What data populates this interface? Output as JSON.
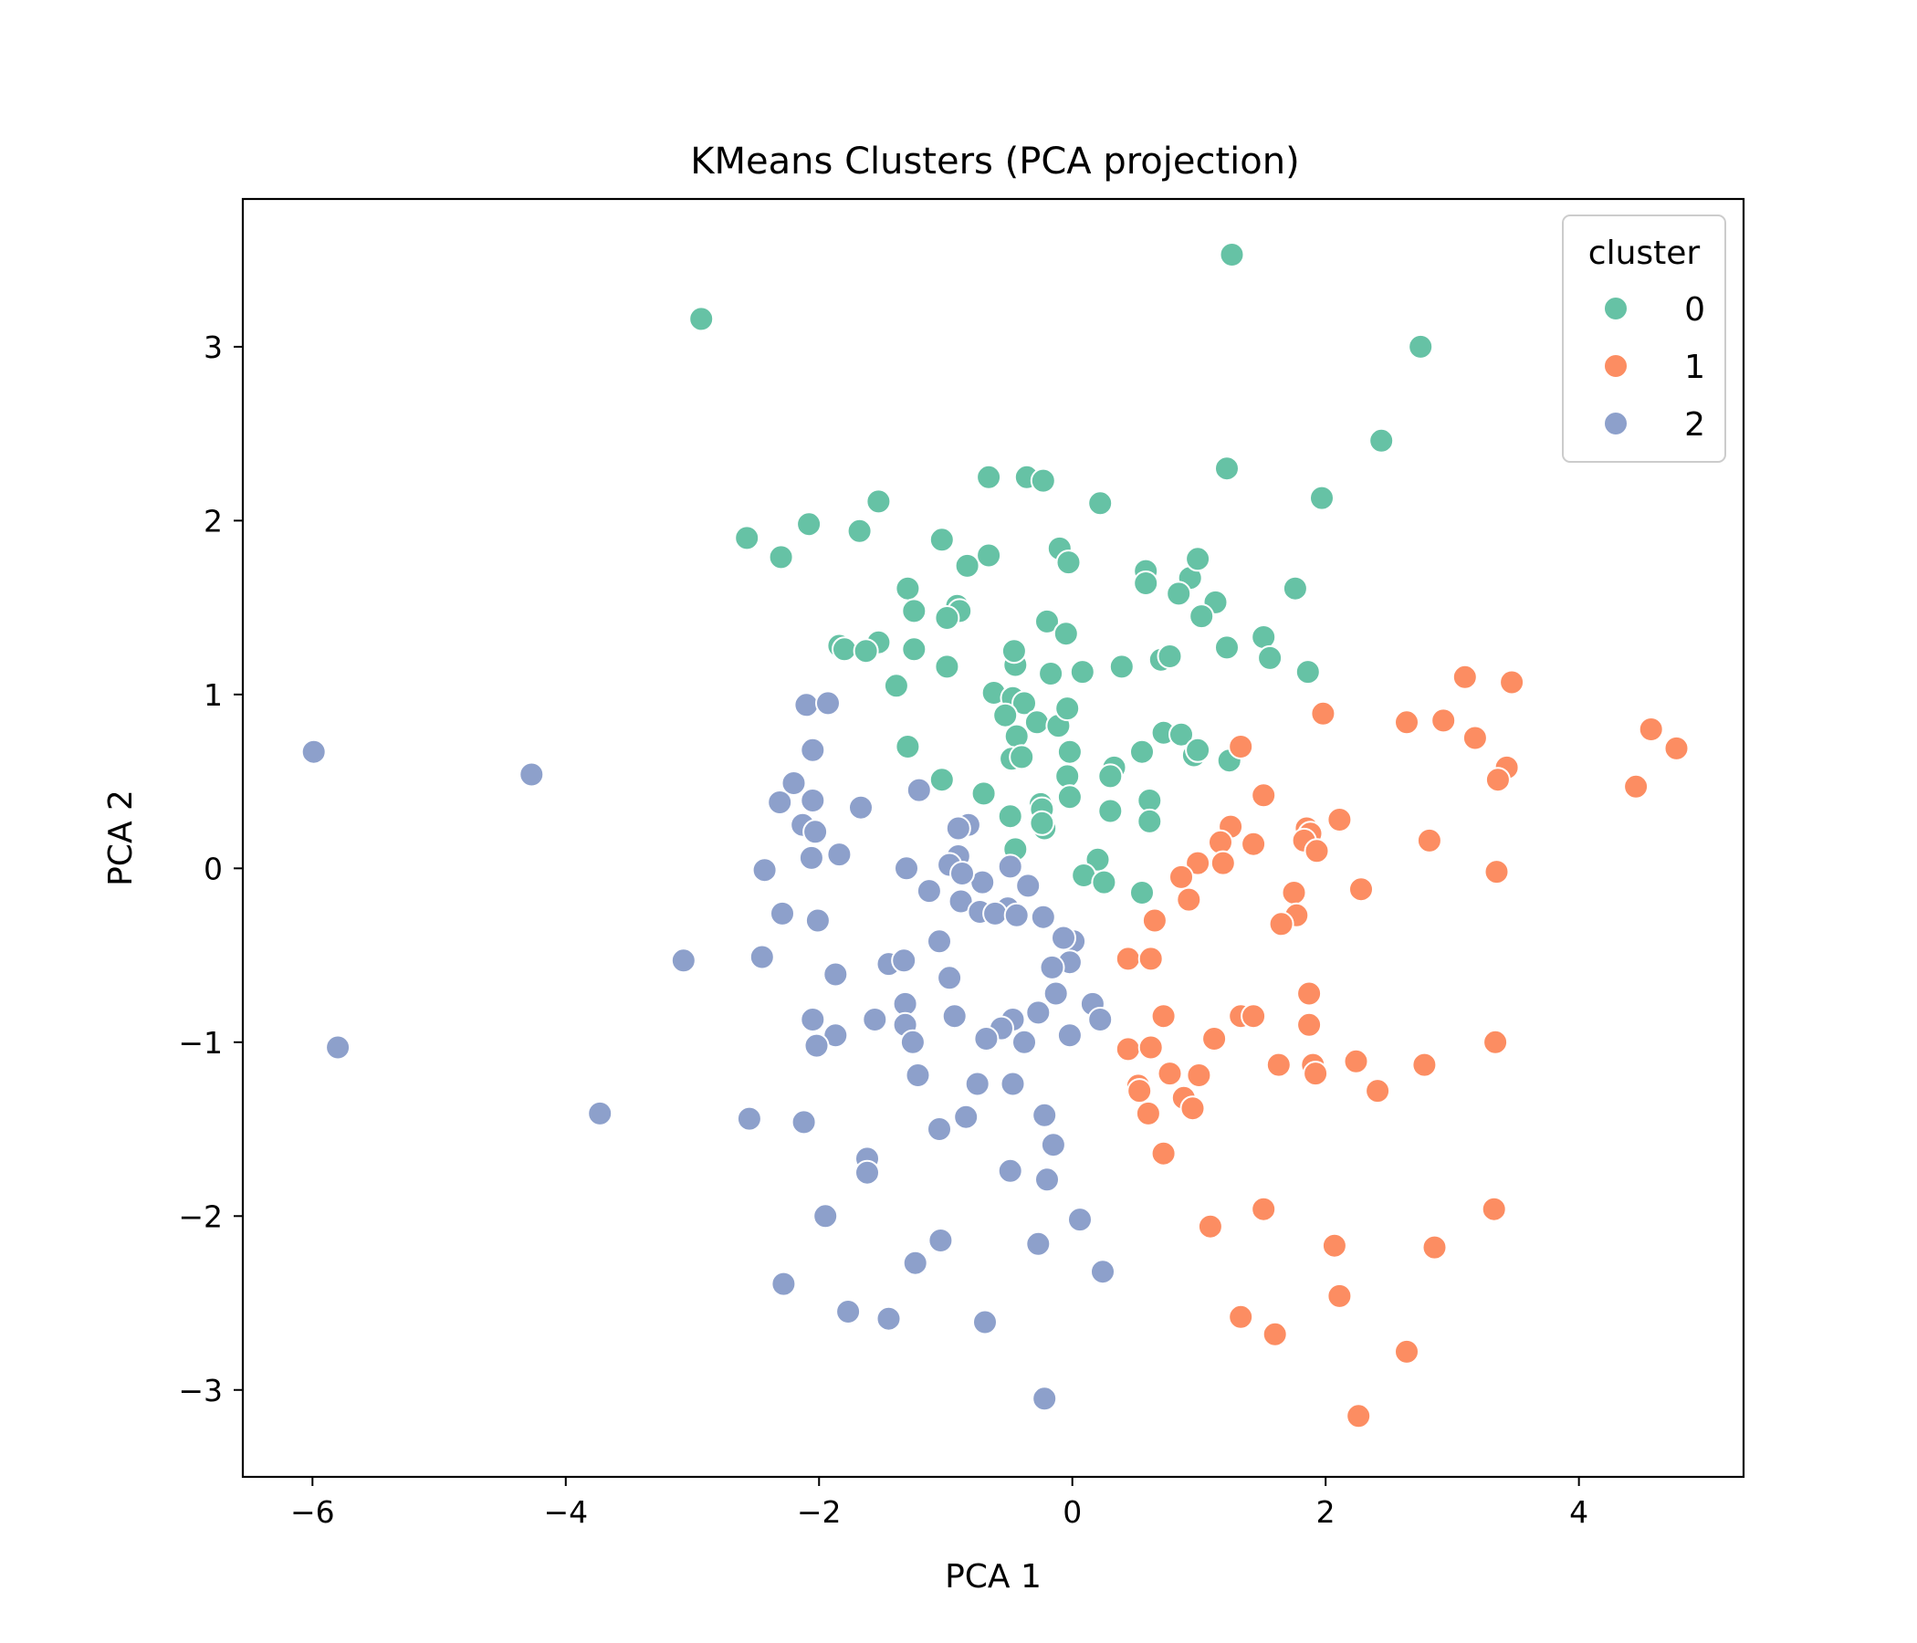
{
  "chart_data": {
    "type": "scatter",
    "title": "KMeans Clusters (PCA projection)",
    "xlabel": "PCA 1",
    "ylabel": "PCA 2",
    "xlim": [
      -6.55,
      5.3
    ],
    "ylim": [
      -3.5,
      3.85
    ],
    "xticks": [
      -6,
      -4,
      -2,
      0,
      2,
      4
    ],
    "yticks": [
      -3,
      -2,
      -1,
      0,
      1,
      2,
      3
    ],
    "xtick_labels": [
      "−6",
      "−4",
      "−2",
      "0",
      "2",
      "4"
    ],
    "ytick_labels": [
      "−3",
      "−2",
      "−1",
      "0",
      "1",
      "2",
      "3"
    ],
    "grid": false,
    "legend": {
      "title": "cluster",
      "position": "top-right"
    },
    "series": [
      {
        "name": "0",
        "color": "#66c2a5",
        "points": [
          [
            -2.93,
            3.16
          ],
          [
            1.26,
            3.53
          ],
          [
            2.75,
            3.0
          ],
          [
            2.44,
            2.46
          ],
          [
            1.22,
            2.3
          ],
          [
            1.97,
            2.13
          ],
          [
            -0.66,
            2.25
          ],
          [
            -0.36,
            2.25
          ],
          [
            -0.23,
            2.23
          ],
          [
            0.22,
            2.1
          ],
          [
            -1.53,
            2.11
          ],
          [
            -2.08,
            1.98
          ],
          [
            -2.57,
            1.9
          ],
          [
            -2.3,
            1.79
          ],
          [
            -1.68,
            1.94
          ],
          [
            -1.03,
            1.89
          ],
          [
            -0.66,
            1.8
          ],
          [
            -0.83,
            1.74
          ],
          [
            -0.1,
            1.84
          ],
          [
            -0.03,
            1.76
          ],
          [
            0.58,
            1.71
          ],
          [
            0.58,
            1.64
          ],
          [
            0.93,
            1.67
          ],
          [
            0.99,
            1.78
          ],
          [
            1.76,
            1.61
          ],
          [
            -1.3,
            1.61
          ],
          [
            -1.25,
            1.48
          ],
          [
            -0.91,
            1.51
          ],
          [
            -0.89,
            1.48
          ],
          [
            -0.99,
            1.44
          ],
          [
            -0.2,
            1.42
          ],
          [
            -0.05,
            1.35
          ],
          [
            0.84,
            1.58
          ],
          [
            1.13,
            1.53
          ],
          [
            1.02,
            1.45
          ],
          [
            1.51,
            1.33
          ],
          [
            1.22,
            1.27
          ],
          [
            1.56,
            1.21
          ],
          [
            1.86,
            1.13
          ],
          [
            0.7,
            1.2
          ],
          [
            0.77,
            1.22
          ],
          [
            0.39,
            1.16
          ],
          [
            0.08,
            1.13
          ],
          [
            -0.17,
            1.12
          ],
          [
            -0.45,
            1.17
          ],
          [
            -0.46,
            1.25
          ],
          [
            -1.25,
            1.26
          ],
          [
            -1.53,
            1.3
          ],
          [
            -1.84,
            1.28
          ],
          [
            -1.8,
            1.26
          ],
          [
            -1.63,
            1.25
          ],
          [
            -0.99,
            1.16
          ],
          [
            -1.39,
            1.05
          ],
          [
            -0.62,
            1.01
          ],
          [
            -0.47,
            0.98
          ],
          [
            -0.38,
            0.95
          ],
          [
            -0.53,
            0.88
          ],
          [
            -0.28,
            0.84
          ],
          [
            -0.11,
            0.82
          ],
          [
            -0.04,
            0.92
          ],
          [
            -0.44,
            0.76
          ],
          [
            -0.48,
            0.63
          ],
          [
            -0.4,
            0.64
          ],
          [
            -0.02,
            0.67
          ],
          [
            -1.3,
            0.7
          ],
          [
            0.33,
            0.58
          ],
          [
            0.3,
            0.53
          ],
          [
            0.55,
            0.67
          ],
          [
            0.72,
            0.78
          ],
          [
            0.86,
            0.77
          ],
          [
            0.96,
            0.65
          ],
          [
            0.99,
            0.68
          ],
          [
            1.24,
            0.62
          ],
          [
            -1.03,
            0.51
          ],
          [
            -0.04,
            0.53
          ],
          [
            -0.7,
            0.43
          ],
          [
            0.61,
            0.39
          ],
          [
            -0.25,
            0.37
          ],
          [
            -0.24,
            0.34
          ],
          [
            -0.02,
            0.41
          ],
          [
            0.3,
            0.33
          ],
          [
            -0.49,
            0.3
          ],
          [
            -0.22,
            0.23
          ],
          [
            -0.24,
            0.26
          ],
          [
            0.61,
            0.27
          ],
          [
            -0.45,
            0.11
          ],
          [
            0.2,
            0.05
          ],
          [
            0.09,
            -0.04
          ],
          [
            0.25,
            -0.08
          ],
          [
            0.55,
            -0.14
          ]
        ]
      },
      {
        "name": "1",
        "color": "#fc8d62",
        "points": [
          [
            3.1,
            1.1
          ],
          [
            3.47,
            1.07
          ],
          [
            2.64,
            0.84
          ],
          [
            2.93,
            0.85
          ],
          [
            1.98,
            0.89
          ],
          [
            3.18,
            0.75
          ],
          [
            4.57,
            0.8
          ],
          [
            4.77,
            0.69
          ],
          [
            1.33,
            0.7
          ],
          [
            3.43,
            0.58
          ],
          [
            3.36,
            0.51
          ],
          [
            4.45,
            0.47
          ],
          [
            1.51,
            0.42
          ],
          [
            1.85,
            0.23
          ],
          [
            1.88,
            0.2
          ],
          [
            2.11,
            0.28
          ],
          [
            1.25,
            0.24
          ],
          [
            1.17,
            0.15
          ],
          [
            1.19,
            0.03
          ],
          [
            1.43,
            0.14
          ],
          [
            1.83,
            0.16
          ],
          [
            1.93,
            0.1
          ],
          [
            2.82,
            0.16
          ],
          [
            0.99,
            0.03
          ],
          [
            0.86,
            -0.05
          ],
          [
            3.35,
            -0.02
          ],
          [
            2.28,
            -0.12
          ],
          [
            1.75,
            -0.14
          ],
          [
            0.92,
            -0.18
          ],
          [
            1.77,
            -0.27
          ],
          [
            1.65,
            -0.32
          ],
          [
            0.65,
            -0.3
          ],
          [
            0.44,
            -0.52
          ],
          [
            0.62,
            -0.52
          ],
          [
            1.87,
            -0.72
          ],
          [
            0.72,
            -0.85
          ],
          [
            1.33,
            -0.85
          ],
          [
            1.43,
            -0.85
          ],
          [
            1.87,
            -0.9
          ],
          [
            1.12,
            -0.98
          ],
          [
            0.44,
            -1.04
          ],
          [
            0.62,
            -1.03
          ],
          [
            1.63,
            -1.13
          ],
          [
            1.9,
            -1.13
          ],
          [
            1.92,
            -1.18
          ],
          [
            2.24,
            -1.11
          ],
          [
            2.78,
            -1.13
          ],
          [
            3.34,
            -1.0
          ],
          [
            0.52,
            -1.25
          ],
          [
            0.53,
            -1.28
          ],
          [
            0.77,
            -1.18
          ],
          [
            1.0,
            -1.19
          ],
          [
            0.88,
            -1.32
          ],
          [
            0.95,
            -1.38
          ],
          [
            2.41,
            -1.28
          ],
          [
            0.6,
            -1.41
          ],
          [
            0.72,
            -1.64
          ],
          [
            1.09,
            -2.06
          ],
          [
            1.51,
            -1.96
          ],
          [
            3.33,
            -1.96
          ],
          [
            2.07,
            -2.17
          ],
          [
            2.86,
            -2.18
          ],
          [
            2.11,
            -2.46
          ],
          [
            1.33,
            -2.58
          ],
          [
            1.6,
            -2.68
          ],
          [
            2.64,
            -2.78
          ],
          [
            2.26,
            -3.15
          ]
        ]
      },
      {
        "name": "2",
        "color": "#8da0cb",
        "points": [
          [
            -5.99,
            0.67
          ],
          [
            -4.27,
            0.54
          ],
          [
            -2.1,
            0.94
          ],
          [
            -1.93,
            0.95
          ],
          [
            -2.05,
            0.68
          ],
          [
            -2.2,
            0.49
          ],
          [
            -2.05,
            0.39
          ],
          [
            -2.31,
            0.38
          ],
          [
            -1.67,
            0.35
          ],
          [
            -1.21,
            0.45
          ],
          [
            -2.13,
            0.25
          ],
          [
            -2.03,
            0.21
          ],
          [
            -0.82,
            0.25
          ],
          [
            -0.9,
            0.23
          ],
          [
            -1.84,
            0.08
          ],
          [
            -2.06,
            0.06
          ],
          [
            -0.9,
            0.07
          ],
          [
            -0.97,
            0.02
          ],
          [
            -0.49,
            0.01
          ],
          [
            -1.31,
            0.0
          ],
          [
            -2.43,
            -0.01
          ],
          [
            -1.13,
            -0.13
          ],
          [
            -0.71,
            -0.08
          ],
          [
            -0.35,
            -0.1
          ],
          [
            -0.87,
            -0.03
          ],
          [
            -0.88,
            -0.19
          ],
          [
            -0.73,
            -0.25
          ],
          [
            -0.51,
            -0.23
          ],
          [
            -0.61,
            -0.26
          ],
          [
            -0.44,
            -0.27
          ],
          [
            -0.23,
            -0.28
          ],
          [
            -2.29,
            -0.26
          ],
          [
            -2.01,
            -0.3
          ],
          [
            -1.05,
            -0.42
          ],
          [
            0.01,
            -0.42
          ],
          [
            -0.07,
            -0.4
          ],
          [
            -3.07,
            -0.53
          ],
          [
            -2.45,
            -0.51
          ],
          [
            -1.45,
            -0.55
          ],
          [
            -1.33,
            -0.53
          ],
          [
            -0.02,
            -0.54
          ],
          [
            -0.16,
            -0.57
          ],
          [
            -1.87,
            -0.61
          ],
          [
            -0.97,
            -0.63
          ],
          [
            -0.13,
            -0.72
          ],
          [
            0.16,
            -0.78
          ],
          [
            -1.32,
            -0.78
          ],
          [
            -2.05,
            -0.87
          ],
          [
            -1.56,
            -0.87
          ],
          [
            -0.93,
            -0.85
          ],
          [
            -0.47,
            -0.87
          ],
          [
            -0.27,
            -0.83
          ],
          [
            -1.32,
            -0.9
          ],
          [
            -0.56,
            -0.92
          ],
          [
            0.22,
            -0.87
          ],
          [
            -1.87,
            -0.96
          ],
          [
            -1.26,
            -1.0
          ],
          [
            -0.68,
            -0.98
          ],
          [
            -0.38,
            -1.0
          ],
          [
            -0.02,
            -0.96
          ],
          [
            -2.02,
            -1.02
          ],
          [
            -1.22,
            -1.19
          ],
          [
            -0.75,
            -1.24
          ],
          [
            -0.47,
            -1.24
          ],
          [
            -3.73,
            -1.41
          ],
          [
            -2.55,
            -1.44
          ],
          [
            -2.12,
            -1.46
          ],
          [
            -1.05,
            -1.5
          ],
          [
            -0.84,
            -1.43
          ],
          [
            -0.22,
            -1.42
          ],
          [
            -0.15,
            -1.59
          ],
          [
            -1.62,
            -1.67
          ],
          [
            -1.62,
            -1.75
          ],
          [
            -0.49,
            -1.74
          ],
          [
            -0.2,
            -1.79
          ],
          [
            -1.95,
            -2.0
          ],
          [
            0.06,
            -2.02
          ],
          [
            -1.04,
            -2.14
          ],
          [
            -0.27,
            -2.16
          ],
          [
            -1.24,
            -2.27
          ],
          [
            0.24,
            -2.32
          ],
          [
            -2.28,
            -2.39
          ],
          [
            -1.77,
            -2.55
          ],
          [
            -1.45,
            -2.59
          ],
          [
            -0.69,
            -2.61
          ],
          [
            -0.22,
            -3.05
          ],
          [
            -5.8,
            -1.03
          ]
        ]
      }
    ]
  }
}
